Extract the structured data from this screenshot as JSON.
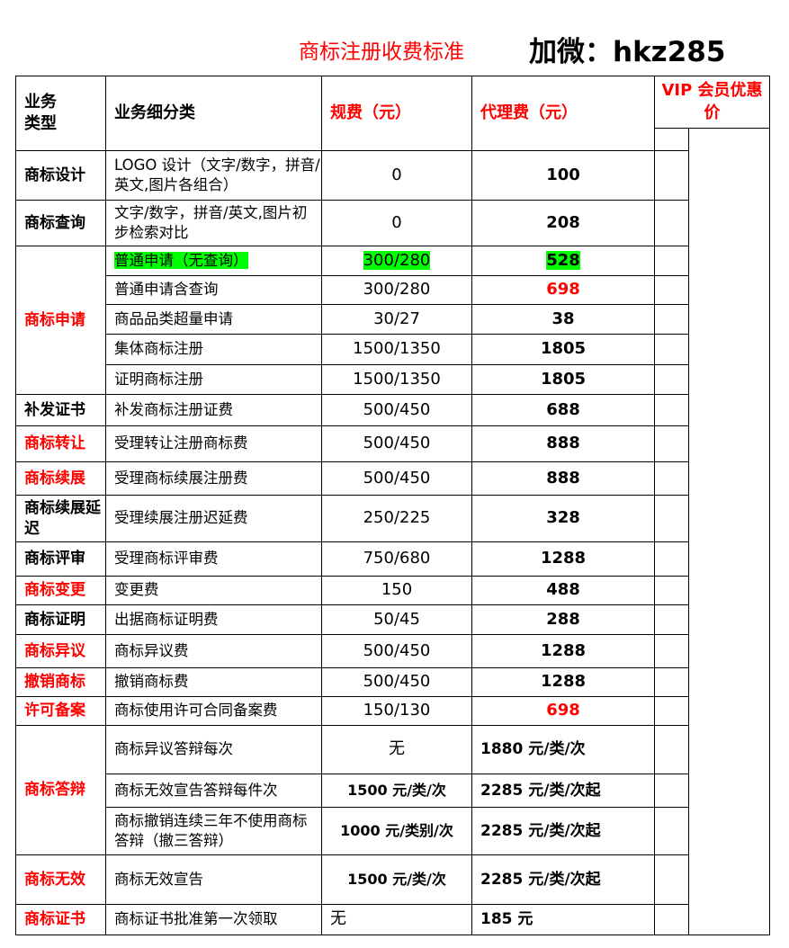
{
  "title": "商标注册收费标准",
  "contact": "加微：hkz285",
  "header": {
    "type": "业务\n类型",
    "subtype": "业务细分类",
    "official_fee": "规费（元）",
    "agency_fee": "代理费（元）",
    "vip": "VIP 会员优惠价"
  },
  "rows": [
    {
      "category": "商标设计",
      "category_red": false,
      "sub": "LOGO 设计（文字/数字，拼音/英文,图片各组合）",
      "fee": "0",
      "agent": "100"
    },
    {
      "category": "商标查询",
      "category_red": false,
      "sub": "文字/数字，拼音/英文,图片初步检索对比",
      "fee": "0",
      "agent": "208"
    },
    {
      "category": "商标申请",
      "category_red": true,
      "sub": "普通申请（无查询）",
      "fee": "300/280",
      "agent": "528",
      "highlight": "#00ff00"
    },
    {
      "category": "",
      "sub": "普通申请含查询",
      "fee": "300/280",
      "agent": "698",
      "agent_red": true
    },
    {
      "category": "",
      "sub": "商品品类超量申请",
      "fee": "30/27",
      "agent": "38"
    },
    {
      "category": "",
      "sub": "集体商标注册",
      "fee": "1500/1350",
      "agent": "1805"
    },
    {
      "category": "",
      "sub": "证明商标注册",
      "fee": "1500/1350",
      "agent": "1805"
    },
    {
      "category": "补发证书",
      "category_red": false,
      "sub": "补发商标注册证费",
      "fee": "500/450",
      "agent": "688"
    },
    {
      "category": "商标转让",
      "category_red": true,
      "sub": "受理转让注册商标费",
      "fee": "500/450",
      "agent": "888"
    },
    {
      "category": "商标续展",
      "category_red": true,
      "sub": "受理商标续展注册费",
      "fee": "500/450",
      "agent": "888"
    },
    {
      "category": "商标续展延迟",
      "category_red": false,
      "sub": "受理续展注册迟延费",
      "fee": "250/225",
      "agent": "328"
    },
    {
      "category": "商标评审",
      "category_red": false,
      "sub": "受理商标评审费",
      "fee": "750/680",
      "agent": "1288"
    },
    {
      "category": "商标变更",
      "category_red": true,
      "sub": "变更费",
      "fee": "150",
      "agent": "488"
    },
    {
      "category": "商标证明",
      "category_red": false,
      "sub": "出据商标证明费",
      "fee": "50/45",
      "agent": "288"
    },
    {
      "category": "商标异议",
      "category_red": true,
      "sub": "商标异议费",
      "fee": "500/450",
      "agent": "1288"
    },
    {
      "category": "撤销商标",
      "category_red": true,
      "sub": "撤销商标费",
      "fee": "500/450",
      "agent": "1288"
    },
    {
      "category": "许可备案",
      "category_red": true,
      "sub": "商标使用许可合同备案费",
      "fee": "150/130",
      "agent": "698",
      "agent_red": true
    },
    {
      "category": "商标答辩",
      "category_red": true,
      "sub": "商标异议答辩每次",
      "fee": "无",
      "agent": "1880 元/类/次"
    },
    {
      "category": "",
      "sub": "商标无效宣告答辩每件次",
      "fee": "1500 元/类/次",
      "agent": "2285 元/类/次起"
    },
    {
      "category": "",
      "sub": "商标撤销连续三年不使用商标答辩（撤三答辩）",
      "fee": "1000 元/类别/次",
      "agent": "2285 元/类/次起"
    },
    {
      "category": "商标无效",
      "category_red": true,
      "sub": "商标无效宣告",
      "fee": "1500 元/类/次",
      "agent": "2285 元/类/次起"
    },
    {
      "category": "商标证书",
      "category_red": true,
      "sub": "商标证书批准第一次领取",
      "fee": "无",
      "agent": "185 元"
    }
  ]
}
